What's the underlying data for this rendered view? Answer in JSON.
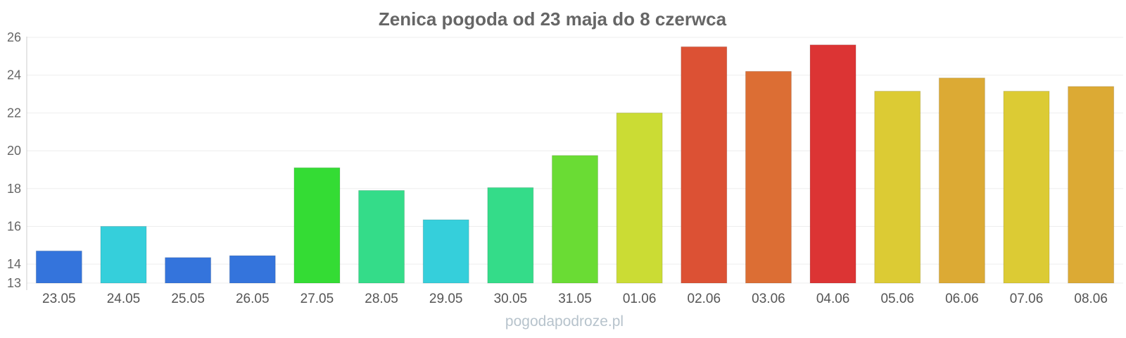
{
  "chart_data": {
    "type": "bar",
    "title": "Zenica pogoda od 23 maja do 8 czerwca",
    "categories": [
      "23.05",
      "24.05",
      "25.05",
      "26.05",
      "27.05",
      "28.05",
      "29.05",
      "30.05",
      "31.05",
      "01.06",
      "02.06",
      "03.06",
      "04.06",
      "05.06",
      "06.06",
      "07.06",
      "08.06"
    ],
    "values": [
      14.7,
      16.0,
      14.35,
      14.45,
      19.1,
      17.9,
      16.35,
      18.05,
      19.75,
      22.0,
      25.5,
      24.2,
      25.6,
      23.15,
      23.85,
      23.15,
      23.4
    ],
    "colors": [
      "#3474dc",
      "#35cfdb",
      "#3474dc",
      "#3474dc",
      "#34dc34",
      "#34dc89",
      "#35cfdb",
      "#34dc89",
      "#6adc34",
      "#cbdc34",
      "#dc5134",
      "#dc6e34",
      "#dc3434",
      "#dccb34",
      "#dcaa34",
      "#dccb34",
      "#dcaa34"
    ],
    "yticks": [
      13,
      14,
      16,
      18,
      20,
      22,
      24,
      26
    ],
    "ylim": [
      13,
      26
    ],
    "grid": true,
    "legend": "none"
  },
  "footer": {
    "source": "pogodapodroze.pl"
  }
}
